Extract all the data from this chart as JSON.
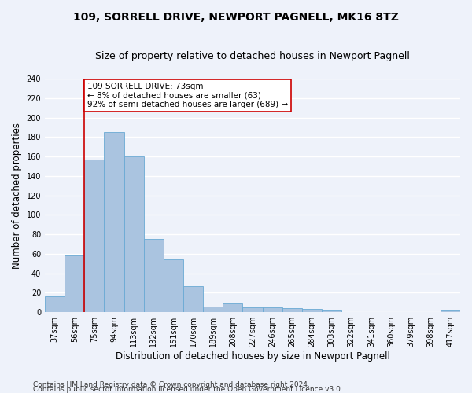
{
  "title": "109, SORRELL DRIVE, NEWPORT PAGNELL, MK16 8TZ",
  "subtitle": "Size of property relative to detached houses in Newport Pagnell",
  "xlabel": "Distribution of detached houses by size in Newport Pagnell",
  "ylabel": "Number of detached properties",
  "categories": [
    "37sqm",
    "56sqm",
    "75sqm",
    "94sqm",
    "113sqm",
    "132sqm",
    "151sqm",
    "170sqm",
    "189sqm",
    "208sqm",
    "227sqm",
    "246sqm",
    "265sqm",
    "284sqm",
    "303sqm",
    "322sqm",
    "341sqm",
    "360sqm",
    "379sqm",
    "398sqm",
    "417sqm"
  ],
  "values": [
    16,
    58,
    157,
    185,
    160,
    75,
    54,
    27,
    6,
    9,
    5,
    5,
    4,
    3,
    2,
    0,
    0,
    0,
    0,
    0,
    2
  ],
  "bar_color": "#aac4e0",
  "bar_edge_color": "#6aaad4",
  "annotation_text": "109 SORRELL DRIVE: 73sqm\n← 8% of detached houses are smaller (63)\n92% of semi-detached houses are larger (689) →",
  "annotation_box_color": "#ffffff",
  "annotation_border_color": "#cc0000",
  "vline_x_index": 1.5,
  "vline_color": "#cc0000",
  "ylim": [
    0,
    240
  ],
  "yticks": [
    0,
    20,
    40,
    60,
    80,
    100,
    120,
    140,
    160,
    180,
    200,
    220,
    240
  ],
  "background_color": "#eef2fa",
  "grid_color": "#ffffff",
  "footer_line1": "Contains HM Land Registry data © Crown copyright and database right 2024.",
  "footer_line2": "Contains public sector information licensed under the Open Government Licence v3.0.",
  "title_fontsize": 10,
  "subtitle_fontsize": 9,
  "xlabel_fontsize": 8.5,
  "ylabel_fontsize": 8.5,
  "tick_fontsize": 7,
  "footer_fontsize": 6.5,
  "annotation_fontsize": 7.5
}
